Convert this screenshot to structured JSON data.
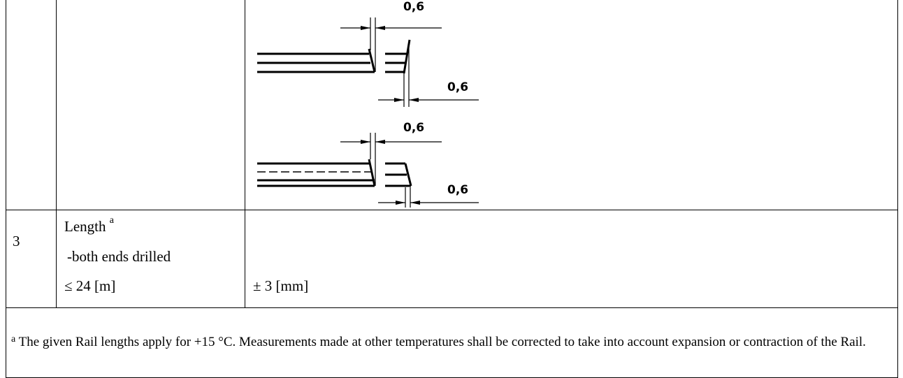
{
  "drawing": {
    "labels": [
      "0,6",
      "0,6",
      "0,6",
      "0,6"
    ]
  },
  "row": {
    "number": "3",
    "item": "Length",
    "item_note": "a",
    "lines": [
      "-both ends drilled",
      "≤ 24 [m]"
    ],
    "tolerance": "± 3 [mm]"
  },
  "footnote": {
    "marker": "a",
    "text": "The given Rail lengths apply for +15 °C. Measurements made at other temperatures shall be corrected to take into account expansion or contraction of the Rail."
  }
}
